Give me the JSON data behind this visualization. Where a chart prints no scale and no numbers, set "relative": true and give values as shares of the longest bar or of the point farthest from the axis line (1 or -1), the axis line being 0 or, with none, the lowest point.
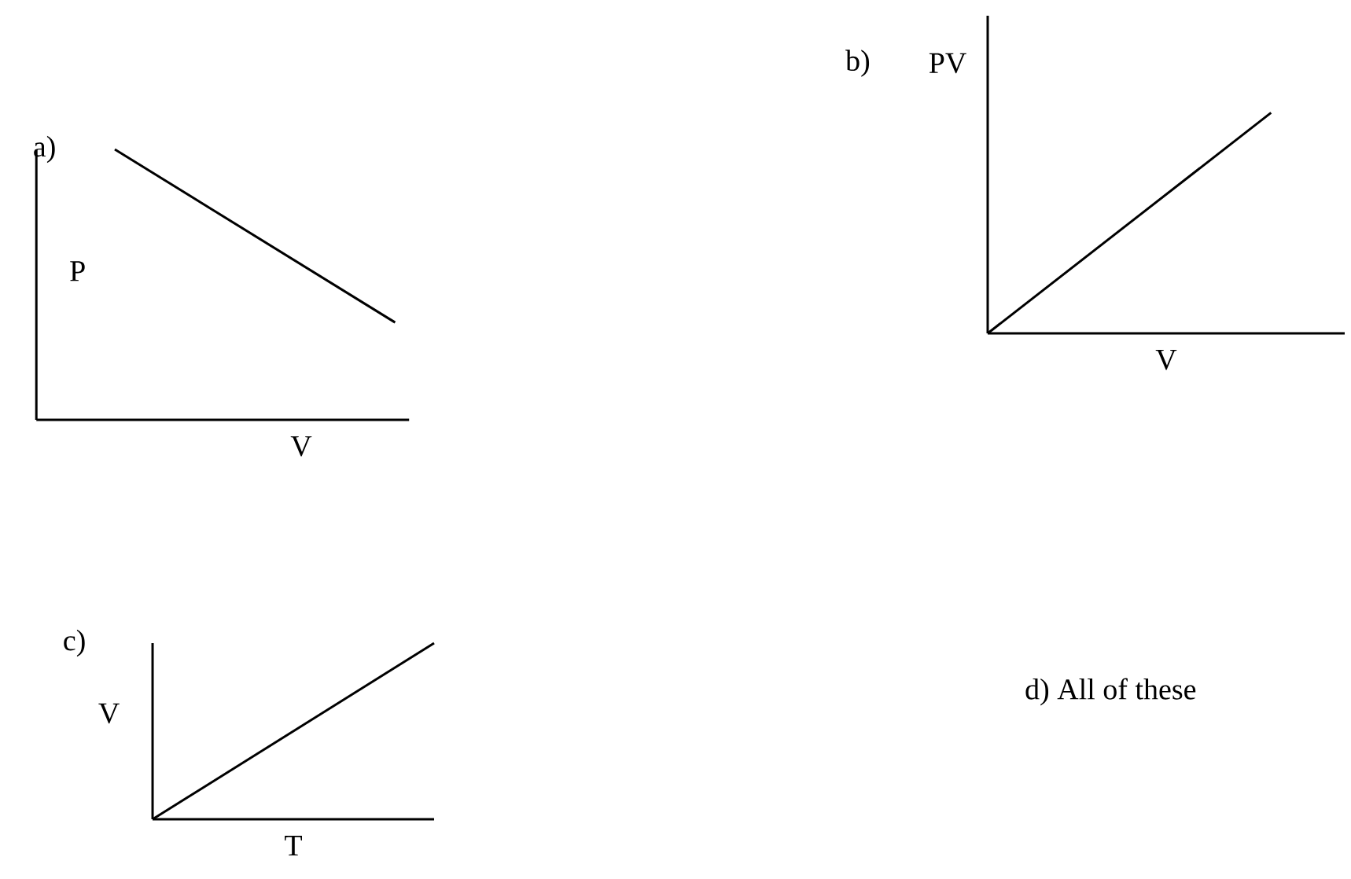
{
  "chart_data": [
    {
      "type": "line",
      "title": "a)",
      "xlabel": "V",
      "ylabel": "P",
      "relative": true,
      "categories": [
        null,
        null
      ],
      "series": [
        {
          "color": "#000000",
          "values": [
            1,
            0.36
          ]
        }
      ]
    },
    {
      "type": "line",
      "title": "b)",
      "xlabel": "V",
      "ylabel": "PV",
      "relative": true,
      "categories": [
        null,
        null
      ],
      "series": [
        {
          "color": "#000000",
          "values": [
            0,
            1
          ]
        }
      ]
    },
    {
      "type": "line",
      "title": "c)",
      "xlabel": "T",
      "ylabel": "V",
      "relative": true,
      "categories": [
        null,
        null
      ],
      "series": [
        {
          "color": "#000000",
          "values": [
            0,
            1
          ]
        }
      ]
    },
    {
      "type": "other",
      "title": "d) All of these"
    }
  ]
}
